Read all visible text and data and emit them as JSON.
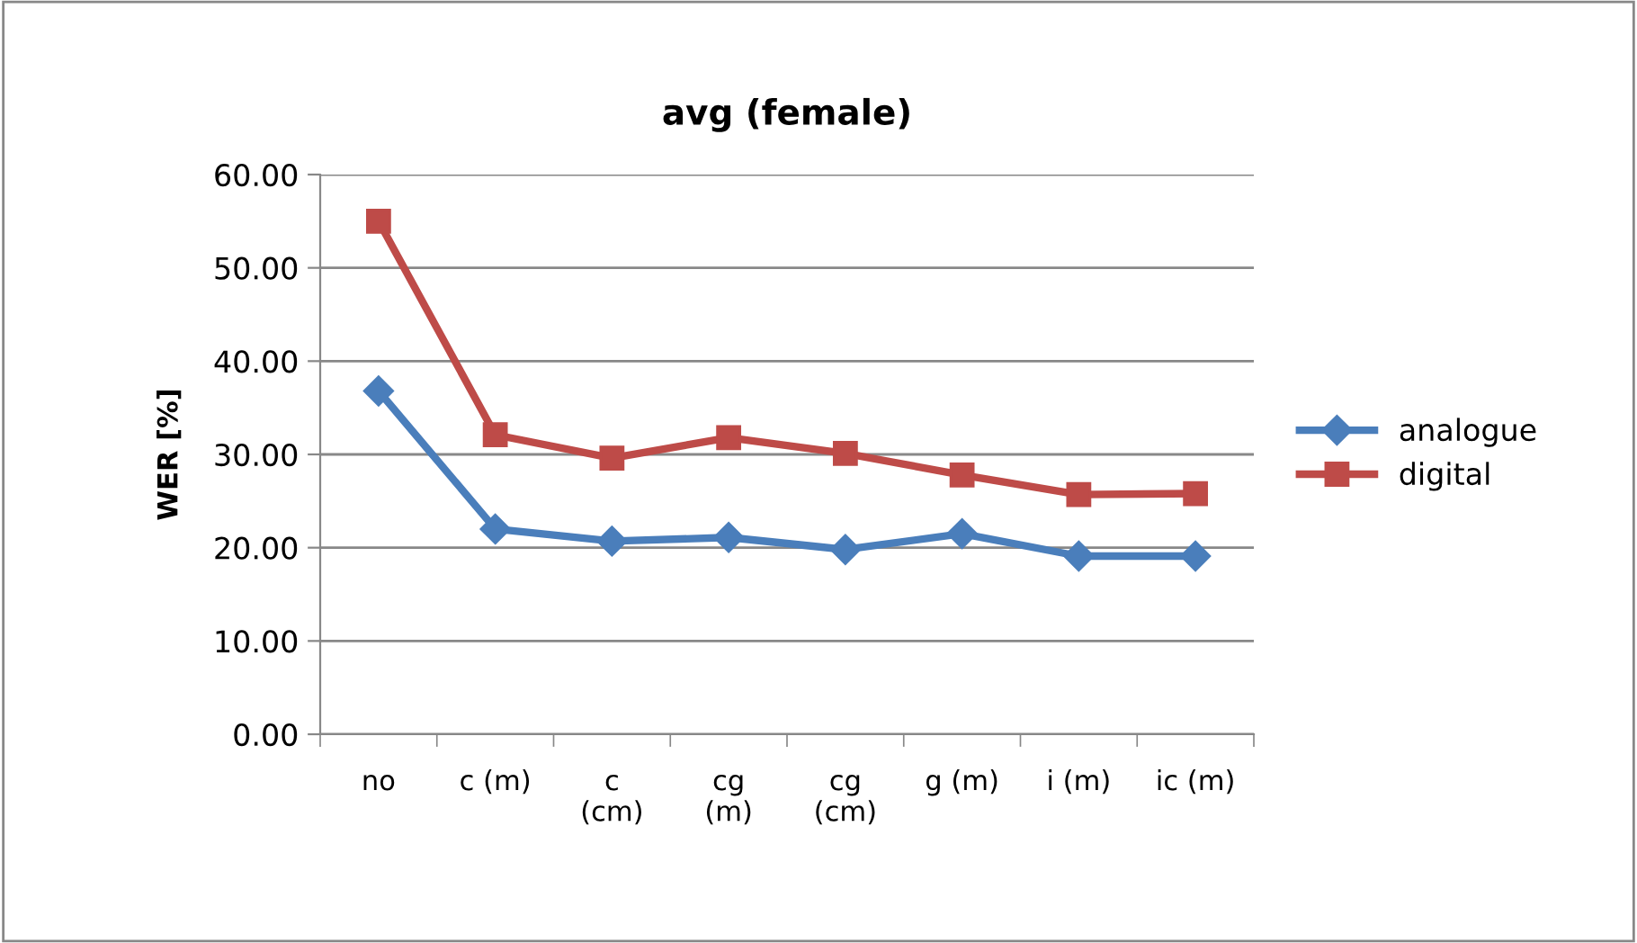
{
  "chart_data": {
    "type": "line",
    "title": "avg (female)",
    "ylabel": "WER [%]",
    "categories": [
      "no",
      "c (m)",
      "c\n(cm)",
      "cg\n(m)",
      "cg\n(cm)",
      "g (m)",
      "i (m)",
      "ic (m)"
    ],
    "series": [
      {
        "name": "analogue",
        "color": "#4a7ebb",
        "marker": "diamond",
        "values": [
          36.8,
          22.0,
          20.7,
          21.1,
          19.8,
          21.5,
          19.1,
          19.1
        ]
      },
      {
        "name": "digital",
        "color": "#be4b48",
        "marker": "square",
        "values": [
          55.0,
          32.1,
          29.6,
          31.8,
          30.1,
          27.8,
          25.7,
          25.8
        ]
      }
    ],
    "ylim": [
      0,
      60
    ],
    "yticks": [
      {
        "value": 0,
        "label": "0.00"
      },
      {
        "value": 10,
        "label": "10.00"
      },
      {
        "value": 20,
        "label": "20.00"
      },
      {
        "value": 30,
        "label": "30.00"
      },
      {
        "value": 40,
        "label": "40.00"
      },
      {
        "value": 50,
        "label": "50.00"
      },
      {
        "value": 60,
        "label": "60.00"
      }
    ],
    "grid": "y",
    "legend": "right"
  }
}
